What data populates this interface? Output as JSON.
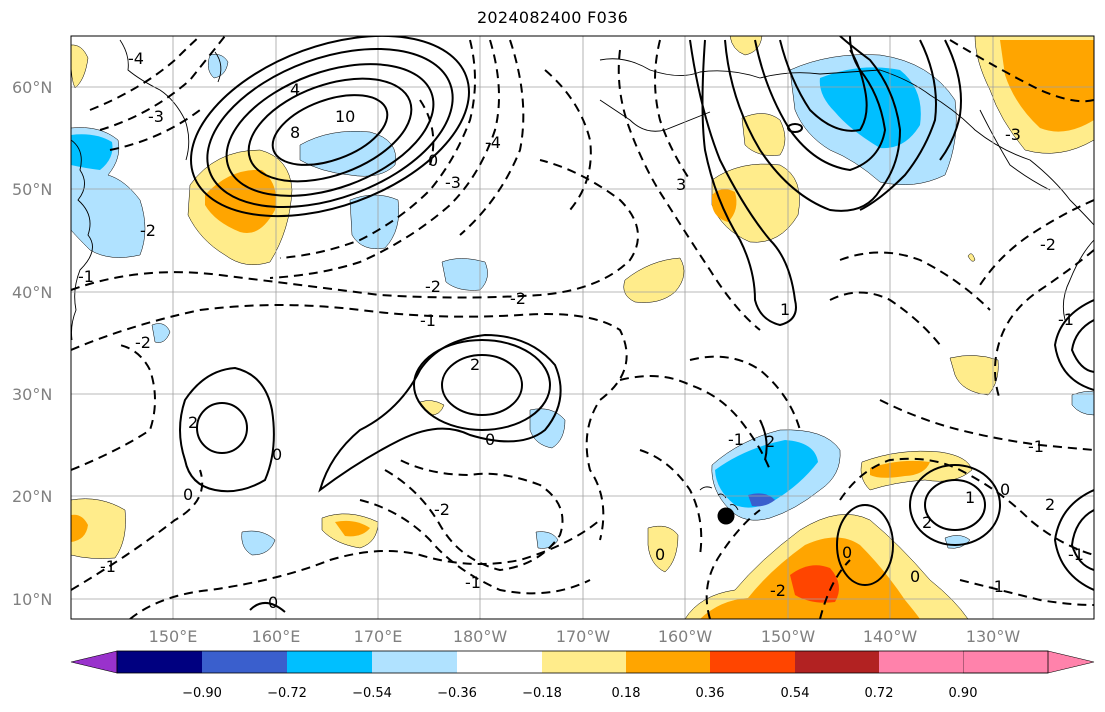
{
  "title": "2024082400 F036",
  "map": {
    "lat_labels": [
      "60°N",
      "50°N",
      "40°N",
      "30°N",
      "20°N",
      "10°N"
    ],
    "lon_labels": [
      "150°E",
      "160°E",
      "170°E",
      "180°W",
      "170°W",
      "160°W",
      "150°W",
      "140°W",
      "130°W"
    ],
    "grid": true,
    "coastline_color": "#000000",
    "contour_labels": [
      {
        "text": "-4"
      },
      {
        "text": "-3"
      },
      {
        "text": "-2"
      },
      {
        "text": "-1"
      },
      {
        "text": "4"
      },
      {
        "text": "8"
      },
      {
        "text": "10"
      },
      {
        "text": "0"
      },
      {
        "text": "-4"
      },
      {
        "text": "-3"
      },
      {
        "text": "-2"
      },
      {
        "text": "-2"
      },
      {
        "text": "-1"
      },
      {
        "text": "-2"
      },
      {
        "text": "2"
      },
      {
        "text": "0"
      },
      {
        "text": "2"
      },
      {
        "text": "0"
      },
      {
        "text": "0"
      },
      {
        "text": "-2"
      },
      {
        "text": "-1"
      },
      {
        "text": "-1"
      },
      {
        "text": "0"
      },
      {
        "text": "-1"
      },
      {
        "text": "-2"
      },
      {
        "text": "2"
      },
      {
        "text": "0"
      },
      {
        "text": "0"
      },
      {
        "text": "2"
      },
      {
        "text": "1"
      },
      {
        "text": "0"
      },
      {
        "text": "-1"
      },
      {
        "text": "0"
      },
      {
        "text": "-1"
      },
      {
        "text": "1"
      },
      {
        "text": "-3"
      },
      {
        "text": "3"
      },
      {
        "text": "-2"
      },
      {
        "text": "-1"
      },
      {
        "text": "-1"
      },
      {
        "text": "2"
      }
    ],
    "marker": "storm-center-dot"
  },
  "colorbar": {
    "ticks": [
      "−0.90",
      "−0.72",
      "−0.54",
      "−0.36",
      "−0.18",
      "0.18",
      "0.36",
      "0.54",
      "0.72",
      "0.90"
    ],
    "colors": [
      "#9932cc",
      "#000080",
      "#3a5fcd",
      "#00bfff",
      "#b0e2ff",
      "#ffffff",
      "#ffec8b",
      "#ffa500",
      "#ff4500",
      "#b22222",
      "#ff82ab"
    ]
  }
}
